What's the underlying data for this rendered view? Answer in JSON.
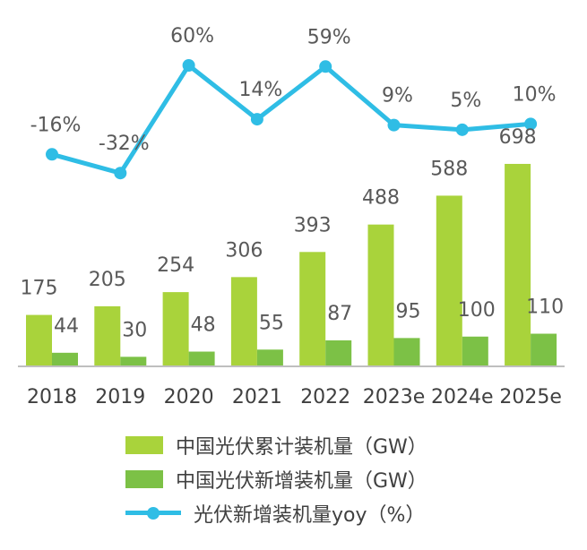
{
  "chart_data": {
    "type": "bar+line",
    "categories": [
      "2018",
      "2019",
      "2020",
      "2021",
      "2022",
      "2023e",
      "2024e",
      "2025e"
    ],
    "tick_labels": [
      "2018",
      "2019",
      "2020",
      "2021",
      "2022",
      "2023e",
      "2024e",
      "2025e"
    ],
    "series": [
      {
        "name": "中国光伏累计装机量（GW）",
        "type": "bar",
        "values": [
          175,
          205,
          254,
          306,
          393,
          488,
          588,
          698
        ],
        "labels": [
          "175",
          "205",
          "254",
          "306",
          "393",
          "488",
          "588",
          "698"
        ],
        "color": "#a9d33b"
      },
      {
        "name": "中国光伏新增装机量（GW）",
        "type": "bar",
        "values": [
          44,
          30,
          48,
          55,
          87,
          95,
          100,
          110
        ],
        "labels": [
          "44",
          "30",
          "48",
          "55",
          "87",
          "95",
          "100",
          "110"
        ],
        "color": "#7cc146"
      },
      {
        "name": "光伏新增装机量yoy（%）",
        "type": "line",
        "values": [
          -16,
          -32,
          60,
          14,
          59,
          9,
          5,
          10
        ],
        "labels": [
          "-16%",
          "-32%",
          "60%",
          "14%",
          "59%",
          "9%",
          "5%",
          "10%"
        ],
        "color": "#2fbde5"
      }
    ],
    "legend_position": "bottom",
    "grid": false
  }
}
